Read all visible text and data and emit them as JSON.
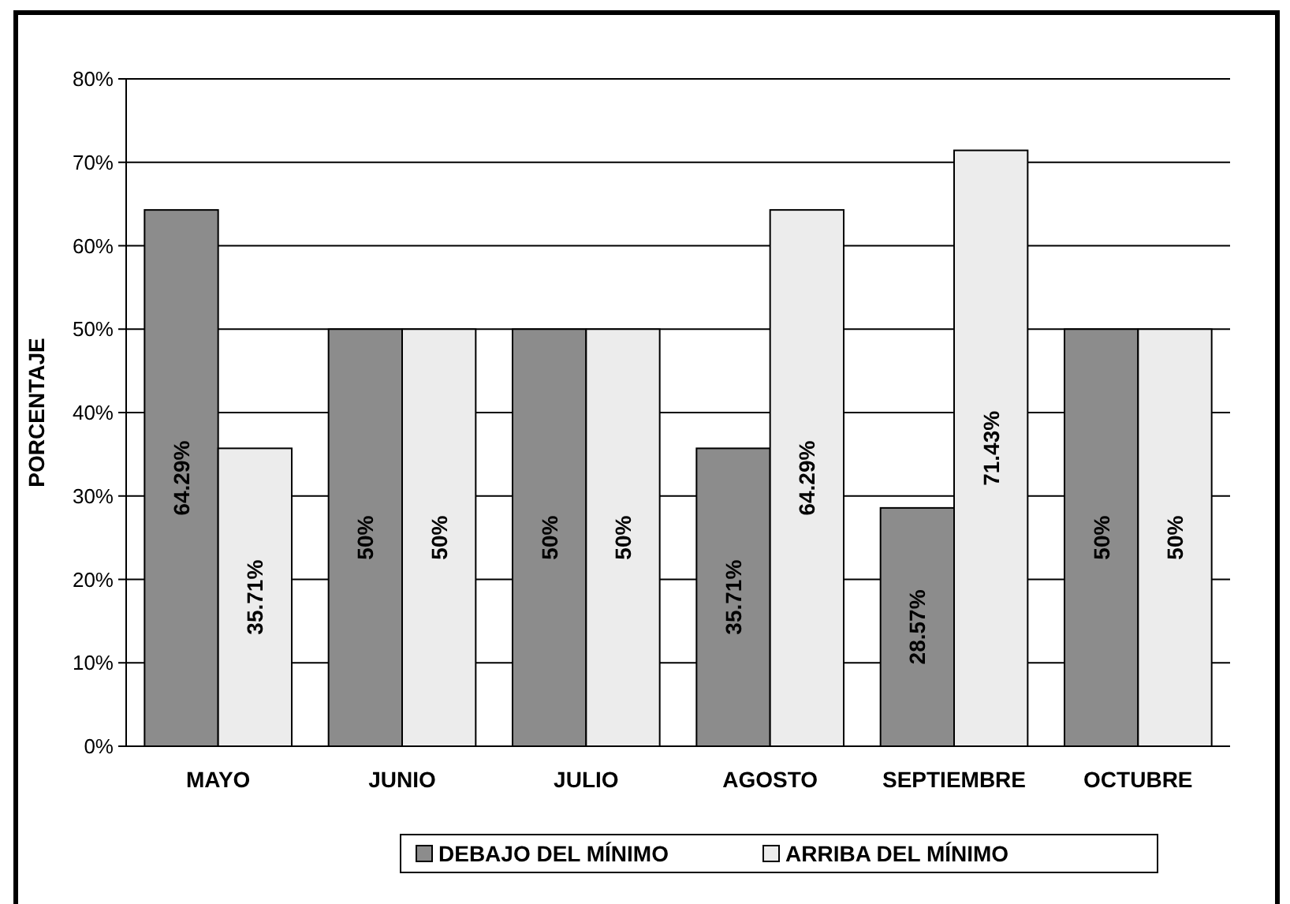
{
  "chart_data": {
    "type": "bar",
    "ylabel": "PORCENTAJE",
    "categories": [
      "MAYO",
      "JUNIO",
      "JULIO",
      "AGOSTO",
      "SEPTIEMBRE",
      "OCTUBRE"
    ],
    "series": [
      {
        "name": "DEBAJO DEL MÍNIMO",
        "color": "#8c8c8c",
        "values": [
          64.29,
          50,
          50,
          35.71,
          28.57,
          50
        ],
        "value_labels": [
          "64.29%",
          "50%",
          "50%",
          "35.71%",
          "28.57%",
          "50%"
        ]
      },
      {
        "name": "ARRIBA DEL MÍNIMO",
        "color": "#ececec",
        "values": [
          35.71,
          50,
          50,
          64.29,
          71.43,
          50
        ],
        "value_labels": [
          "35.71%",
          "50%",
          "50%",
          "64.29%",
          "71.43%",
          "50%"
        ]
      }
    ],
    "ylim": [
      0,
      80
    ],
    "yticks": [
      {
        "value": 0,
        "label": "0%"
      },
      {
        "value": 10,
        "label": "10%"
      },
      {
        "value": 20,
        "label": "20%"
      },
      {
        "value": 30,
        "label": "30%"
      },
      {
        "value": 40,
        "label": "40%"
      },
      {
        "value": 50,
        "label": "50%"
      },
      {
        "value": 60,
        "label": "60%"
      },
      {
        "value": 70,
        "label": "70%"
      },
      {
        "value": 80,
        "label": "80%"
      }
    ],
    "grid": "y",
    "legend": "bottom"
  }
}
